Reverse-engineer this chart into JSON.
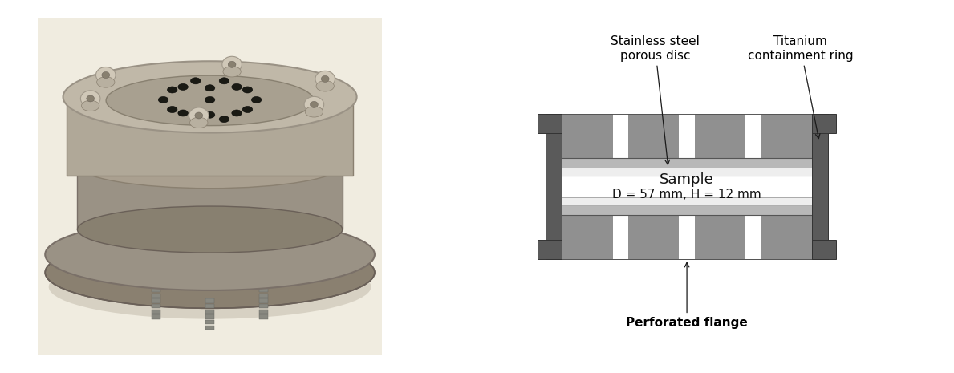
{
  "bg_color": "#ffffff",
  "gray_dark": "#5a5a5a",
  "gray_mid": "#909090",
  "gray_light": "#b8b8b8",
  "porous_disc_light": "#d8d8d8",
  "porous_disc_highlight": "#eeeeee",
  "sample_fill": "#ffffff",
  "label_stainless": "Stainless steel\nporous disc",
  "label_titanium": "Titanium\ncontainment ring",
  "label_perforated": "Perforated flange",
  "label_sample": "Sample",
  "label_dims": "D = 57 mm, H = 12 mm",
  "font_size_labels": 11,
  "font_size_sample": 13,
  "photo_bg": "#f0ece0"
}
